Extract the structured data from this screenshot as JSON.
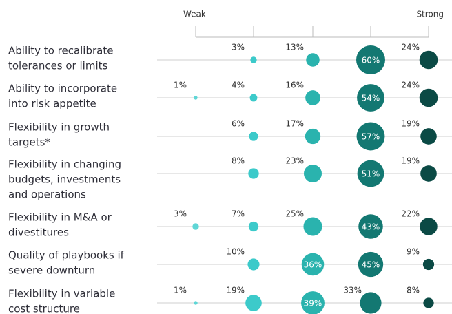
{
  "chart_data": {
    "type": "bubble",
    "columns": [
      "Weak",
      null,
      null,
      null,
      "Strong"
    ],
    "categories": [
      [
        "Ability to recalibrate",
        "tolerances or limits"
      ],
      [
        "Ability to incorporate",
        "into risk appetite"
      ],
      [
        "Flexibility in growth",
        "targets*"
      ],
      [
        "Flexibility in changing",
        "budgets, investments",
        "and operations"
      ],
      [
        "Flexibility in M&A or",
        "divestitures"
      ],
      [
        "Quality of playbooks if",
        "severe downturn"
      ],
      [
        "Flexibility in variable",
        "cost structure"
      ]
    ],
    "series": [
      {
        "color": "#5fd6d6",
        "values": [
          null,
          1,
          null,
          null,
          3,
          null,
          1
        ],
        "value_labels": [
          null,
          "1%",
          null,
          null,
          "3%",
          null,
          "1%"
        ]
      },
      {
        "color": "#3ccaca",
        "values": [
          3,
          4,
          6,
          8,
          7,
          10,
          19
        ],
        "value_labels": [
          "3%",
          "4%",
          "6%",
          "8%",
          "7%",
          "10%",
          "19%"
        ]
      },
      {
        "color": "#2ab3ae",
        "values": [
          13,
          16,
          17,
          23,
          25,
          36,
          39
        ],
        "value_labels": [
          "13%",
          "16%",
          "17%",
          "23%",
          "25%",
          "36%",
          "39%"
        ]
      },
      {
        "color": "#137872",
        "values": [
          60,
          54,
          57,
          51,
          43,
          45,
          33
        ],
        "value_labels": [
          "60%",
          "54%",
          "57%",
          "51%",
          "43%",
          "45%",
          "33%"
        ]
      },
      {
        "color": "#0b4a45",
        "values": [
          24,
          24,
          19,
          19,
          22,
          9,
          8
        ],
        "value_labels": [
          "24%",
          "24%",
          "19%",
          "19%",
          "22%",
          "9%",
          "8%"
        ]
      }
    ]
  }
}
